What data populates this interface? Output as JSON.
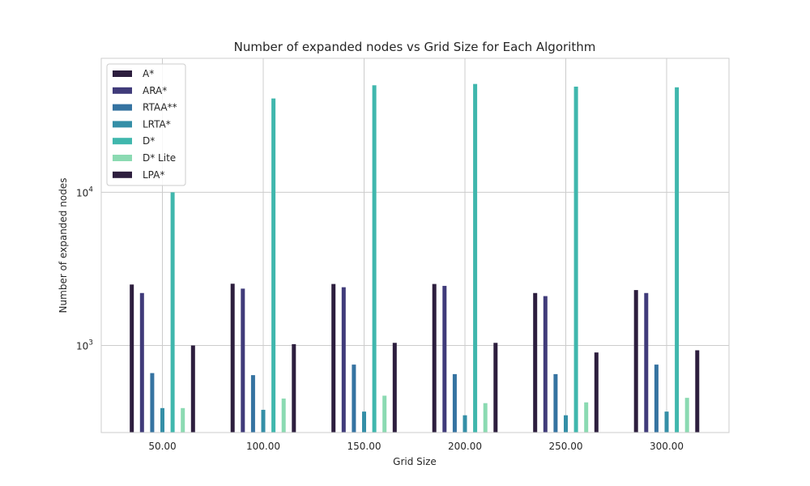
{
  "chart_data": {
    "type": "bar",
    "title": "Number of expanded nodes vs Grid Size for Each Algorithm",
    "xlabel": "Grid Size",
    "ylabel": "Number of expanded nodes",
    "yscale": "log",
    "ylim": [
      270,
      75000
    ],
    "grid": true,
    "legend_position": "top-left",
    "categories": [
      "50.00",
      "100.00",
      "150.00",
      "200.00",
      "250.00",
      "300.00"
    ],
    "y_ticks": [
      {
        "value": 1000,
        "base": "10",
        "exp": "3"
      },
      {
        "value": 10000,
        "base": "10",
        "exp": "4"
      }
    ],
    "series": [
      {
        "name": "A*",
        "color": "#2d1e3e",
        "values": [
          2500,
          2530,
          2520,
          2520,
          2200,
          2300
        ]
      },
      {
        "name": "ARA*",
        "color": "#403b7a",
        "values": [
          2200,
          2350,
          2400,
          2450,
          2100,
          2200
        ]
      },
      {
        "name": "RTAA**",
        "color": "#3573a1",
        "values": [
          660,
          640,
          750,
          650,
          650,
          750
        ]
      },
      {
        "name": "LRTA*",
        "color": "#348fa7",
        "values": [
          390,
          380,
          370,
          350,
          350,
          370
        ]
      },
      {
        "name": "D*",
        "color": "#40b7ad",
        "values": [
          10000,
          41000,
          50000,
          51000,
          49000,
          48500
        ]
      },
      {
        "name": "D* Lite",
        "color": "#8bdab2",
        "values": [
          390,
          450,
          470,
          420,
          425,
          455
        ]
      },
      {
        "name": "LPA*",
        "color": "#2d1e3e",
        "values": [
          1000,
          1020,
          1040,
          1040,
          900,
          930
        ]
      }
    ]
  }
}
